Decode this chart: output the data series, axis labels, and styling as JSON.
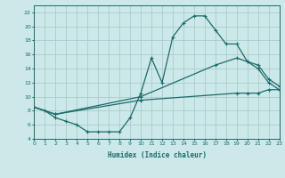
{
  "xlabel": "Humidex (Indice chaleur)",
  "xlim": [
    0,
    23
  ],
  "ylim": [
    4,
    23
  ],
  "yticks": [
    4,
    6,
    8,
    10,
    12,
    14,
    16,
    18,
    20,
    22
  ],
  "xticks": [
    0,
    1,
    2,
    3,
    4,
    5,
    6,
    7,
    8,
    9,
    10,
    11,
    12,
    13,
    14,
    15,
    16,
    17,
    18,
    19,
    20,
    21,
    22,
    23
  ],
  "bg_color": "#cde8e8",
  "grid_color": "#aacccc",
  "line_color": "#1a6b6b",
  "curve1_x": [
    0,
    1,
    2,
    3,
    4,
    5,
    6,
    7,
    8,
    9,
    10,
    11,
    12,
    13,
    14,
    15,
    16,
    17,
    18,
    19,
    20,
    21,
    22,
    23
  ],
  "curve1_y": [
    8.5,
    8.0,
    7.0,
    6.5,
    6.0,
    5.0,
    5.0,
    5.0,
    5.0,
    7.0,
    10.5,
    15.5,
    12.0,
    18.5,
    20.5,
    21.5,
    21.5,
    19.5,
    17.5,
    17.5,
    15.0,
    14.0,
    12.0,
    11.0
  ],
  "curve2_x": [
    0,
    2,
    10,
    17,
    19,
    20,
    21,
    22,
    23
  ],
  "curve2_y": [
    8.5,
    7.5,
    10.0,
    14.5,
    15.5,
    15.0,
    14.5,
    12.5,
    11.5
  ],
  "curve3_x": [
    0,
    2,
    10,
    19,
    20,
    21,
    22,
    23
  ],
  "curve3_y": [
    8.5,
    7.5,
    9.5,
    10.5,
    10.5,
    10.5,
    11.0,
    11.0
  ]
}
